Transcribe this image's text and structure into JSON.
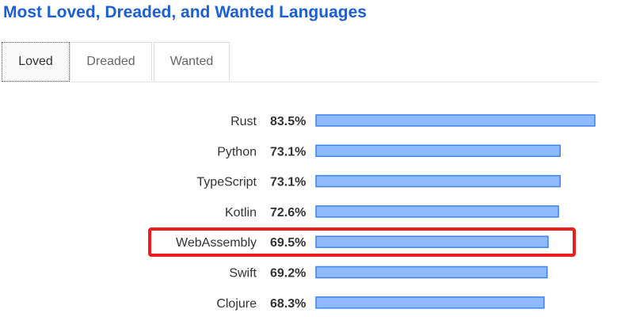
{
  "title": "Most Loved, Dreaded, and Wanted Languages",
  "tabs": [
    {
      "label": "Loved",
      "active": true
    },
    {
      "label": "Dreaded",
      "active": false
    },
    {
      "label": "Wanted",
      "active": false
    }
  ],
  "colors": {
    "title": "#1a5fd6",
    "bar_fill": "#8fbaff",
    "bar_stroke": "#3c84ec",
    "highlight": "#ee1c1c"
  },
  "chart_data": {
    "type": "bar",
    "orientation": "horizontal",
    "categories": [
      "Rust",
      "Python",
      "TypeScript",
      "Kotlin",
      "WebAssembly",
      "Swift",
      "Clojure"
    ],
    "values": [
      83.5,
      73.1,
      73.1,
      72.6,
      69.5,
      69.2,
      68.3
    ],
    "value_labels": [
      "83.5%",
      "73.1%",
      "73.1%",
      "72.6%",
      "69.5%",
      "69.2%",
      "68.3%"
    ],
    "unit": "%",
    "highlighted_category": "WebAssembly",
    "grid": false,
    "legend": "none"
  }
}
